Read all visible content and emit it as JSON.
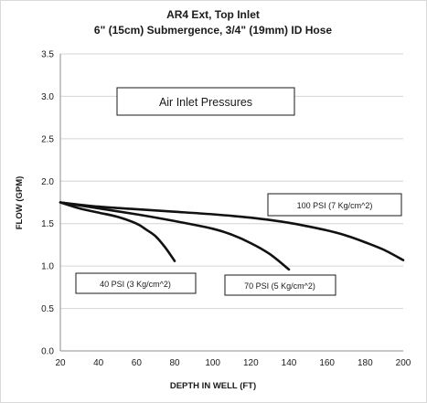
{
  "chart_data": {
    "type": "line",
    "title": "AR4 Ext, Top Inlet",
    "subtitle": "6\" (15cm) Submergence, 3/4\" (19mm) ID Hose",
    "xlabel": "DEPTH IN WELL (FT)",
    "ylabel": "FLOW (GPM)",
    "xlim": [
      20,
      200
    ],
    "ylim": [
      0,
      3.5
    ],
    "xticks": [
      20,
      40,
      60,
      80,
      100,
      120,
      140,
      160,
      180,
      200
    ],
    "yticks": [
      0.0,
      0.5,
      1.0,
      1.5,
      2.0,
      2.5,
      3.0,
      3.5
    ],
    "ytick_labels": [
      "0.0",
      "0.5",
      "1.0",
      "1.5",
      "2.0",
      "2.5",
      "3.0",
      "3.5"
    ],
    "grid": "horizontal",
    "legend_title": "Air Inlet Pressures",
    "series": [
      {
        "name": "40 PSI (3 Kg/cm^2)",
        "x": [
          20,
          30,
          40,
          50,
          60,
          65,
          70,
          75,
          80
        ],
        "y": [
          1.75,
          1.68,
          1.63,
          1.58,
          1.5,
          1.43,
          1.35,
          1.22,
          1.06
        ]
      },
      {
        "name": "70 PSI (5 Kg/cm^2)",
        "x": [
          20,
          40,
          60,
          80,
          100,
          110,
          120,
          130,
          140
        ],
        "y": [
          1.75,
          1.68,
          1.61,
          1.53,
          1.44,
          1.37,
          1.27,
          1.14,
          0.96
        ]
      },
      {
        "name": "100 PSI (7 Kg/cm^2)",
        "x": [
          20,
          40,
          60,
          80,
          100,
          120,
          140,
          160,
          170,
          180,
          190,
          200
        ],
        "y": [
          1.75,
          1.7,
          1.67,
          1.64,
          1.61,
          1.57,
          1.51,
          1.42,
          1.36,
          1.28,
          1.19,
          1.07
        ]
      }
    ]
  }
}
